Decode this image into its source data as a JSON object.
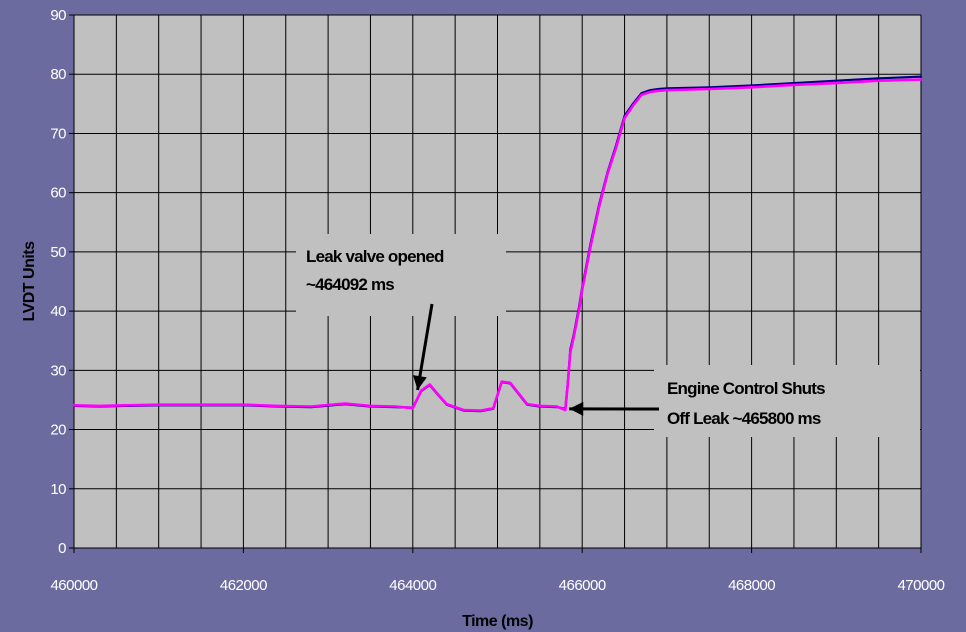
{
  "chart_data": {
    "type": "line",
    "title": "",
    "xlabel": "Time (ms)",
    "ylabel": "LVDT Units",
    "xlim": [
      460000,
      470000
    ],
    "ylim": [
      0,
      90
    ],
    "xticks": [
      460000,
      462000,
      464000,
      466000,
      468000,
      470000
    ],
    "yticks": [
      0,
      10,
      20,
      30,
      40,
      50,
      60,
      70,
      80,
      90
    ],
    "grid": true,
    "legend": "none",
    "colors": {
      "background": "#6b6b9f",
      "plot_area": "#c0c0c0",
      "grid": "#000000",
      "series_1": "#000080",
      "series_2": "#ff00ff"
    },
    "series": [
      {
        "color": "#000080",
        "x": [
          460000,
          460300,
          460600,
          461000,
          461500,
          462000,
          462400,
          462800,
          463200,
          463500,
          463800,
          464000,
          464100,
          464200,
          464300,
          464400,
          464600,
          464800,
          464950,
          465050,
          465150,
          465250,
          465350,
          465500,
          465700,
          465800,
          465830,
          465860,
          465900,
          465960,
          466000,
          466100,
          466200,
          466300,
          466400,
          466500,
          466600,
          466700,
          466800,
          466900,
          467000,
          467500,
          468000,
          468500,
          469000,
          469500,
          470000
        ],
        "y": [
          24.0,
          23.9,
          24.0,
          24.1,
          24.1,
          24.1,
          23.9,
          23.8,
          24.3,
          23.9,
          23.8,
          23.7,
          26.5,
          27.5,
          25.8,
          24.2,
          23.2,
          23.1,
          23.5,
          28.0,
          27.8,
          26.0,
          24.2,
          23.9,
          23.8,
          23.5,
          28.0,
          33.5,
          36.0,
          40.5,
          44.0,
          51.5,
          58.0,
          63.5,
          68.0,
          73.0,
          75.0,
          76.8,
          77.3,
          77.5,
          77.6,
          77.8,
          78.1,
          78.5,
          78.9,
          79.3,
          79.6
        ]
      },
      {
        "color": "#ff00ff",
        "x": [
          460000,
          460300,
          460600,
          461000,
          461500,
          462000,
          462400,
          462800,
          463200,
          463500,
          463800,
          464000,
          464100,
          464200,
          464300,
          464400,
          464600,
          464800,
          464950,
          465050,
          465150,
          465250,
          465350,
          465500,
          465700,
          465800,
          465830,
          465860,
          465900,
          465960,
          466000,
          466100,
          466200,
          466300,
          466400,
          466500,
          466600,
          466700,
          466800,
          466900,
          467000,
          467500,
          468000,
          468500,
          469000,
          469500,
          470000
        ],
        "y": [
          24.1,
          24.0,
          24.1,
          24.2,
          24.2,
          24.2,
          24.0,
          23.9,
          24.4,
          24.0,
          23.9,
          23.6,
          26.6,
          27.6,
          25.9,
          24.3,
          23.3,
          23.2,
          23.6,
          28.1,
          27.9,
          26.1,
          24.3,
          24.0,
          23.9,
          23.3,
          27.6,
          33.0,
          35.6,
          40.0,
          43.6,
          51.0,
          57.6,
          63.2,
          67.6,
          72.6,
          74.7,
          76.5,
          77.0,
          77.2,
          77.3,
          77.5,
          77.8,
          78.2,
          78.5,
          78.9,
          79.1
        ]
      }
    ],
    "annotations": [
      {
        "lines": [
          "Leak valve opened",
          "~464092 ms"
        ],
        "arrow_to": [
          464092,
          26
        ]
      },
      {
        "lines": [
          "Engine Control Shuts",
          "Off Leak ~465800 ms"
        ],
        "arrow_to": [
          465800,
          23.5
        ]
      }
    ]
  }
}
